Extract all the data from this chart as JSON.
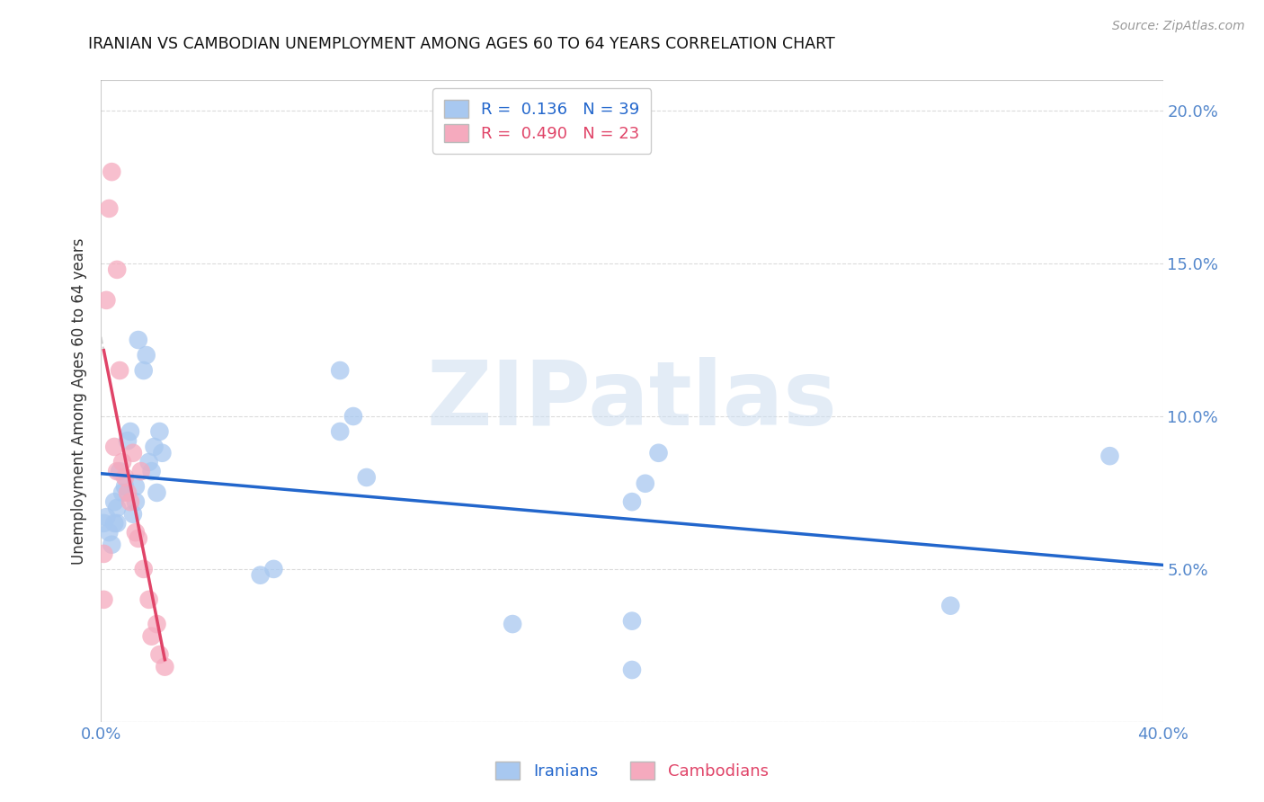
{
  "title": "IRANIAN VS CAMBODIAN UNEMPLOYMENT AMONG AGES 60 TO 64 YEARS CORRELATION CHART",
  "source": "Source: ZipAtlas.com",
  "ylabel": "Unemployment Among Ages 60 to 64 years",
  "xlim": [
    0.0,
    0.4
  ],
  "ylim": [
    0.0,
    0.21
  ],
  "yticks": [
    0.0,
    0.05,
    0.1,
    0.15,
    0.2
  ],
  "ytick_labels_right": [
    "",
    "5.0%",
    "10.0%",
    "15.0%",
    "20.0%"
  ],
  "xticks": [
    0.0,
    0.1,
    0.2,
    0.3,
    0.4
  ],
  "xtick_labels": [
    "0.0%",
    "",
    "",
    "",
    "40.0%"
  ],
  "iranian_R": 0.136,
  "iranian_N": 39,
  "cambodian_R": 0.49,
  "cambodian_N": 23,
  "iranian_color": "#a8c8f0",
  "cambodian_color": "#f5aabe",
  "iranian_line_color": "#2266cc",
  "cambodian_line_color": "#e04468",
  "watermark_text": "ZIPatlas",
  "bg_color": "#ffffff",
  "title_color": "#111111",
  "axis_label_color": "#333333",
  "tick_color": "#5588cc",
  "grid_color": "#cccccc",
  "iranians_x": [
    0.001,
    0.002,
    0.003,
    0.004,
    0.005,
    0.005,
    0.006,
    0.006,
    0.007,
    0.008,
    0.009,
    0.01,
    0.011,
    0.012,
    0.013,
    0.013,
    0.014,
    0.016,
    0.017,
    0.018,
    0.019,
    0.02,
    0.021,
    0.022,
    0.023,
    0.06,
    0.065,
    0.09,
    0.09,
    0.095,
    0.1,
    0.155,
    0.2,
    0.2,
    0.2,
    0.205,
    0.21,
    0.32,
    0.38
  ],
  "iranians_y": [
    0.065,
    0.067,
    0.062,
    0.058,
    0.065,
    0.072,
    0.065,
    0.07,
    0.082,
    0.075,
    0.077,
    0.092,
    0.095,
    0.068,
    0.072,
    0.077,
    0.125,
    0.115,
    0.12,
    0.085,
    0.082,
    0.09,
    0.075,
    0.095,
    0.088,
    0.048,
    0.05,
    0.115,
    0.095,
    0.1,
    0.08,
    0.032,
    0.017,
    0.033,
    0.072,
    0.078,
    0.088,
    0.038,
    0.087
  ],
  "cambodians_x": [
    0.001,
    0.001,
    0.002,
    0.003,
    0.004,
    0.005,
    0.006,
    0.006,
    0.007,
    0.008,
    0.009,
    0.01,
    0.011,
    0.012,
    0.013,
    0.014,
    0.015,
    0.016,
    0.018,
    0.019,
    0.021,
    0.022,
    0.024
  ],
  "cambodians_y": [
    0.04,
    0.055,
    0.138,
    0.168,
    0.18,
    0.09,
    0.148,
    0.082,
    0.115,
    0.085,
    0.08,
    0.075,
    0.072,
    0.088,
    0.062,
    0.06,
    0.082,
    0.05,
    0.04,
    0.028,
    0.032,
    0.022,
    0.018
  ]
}
